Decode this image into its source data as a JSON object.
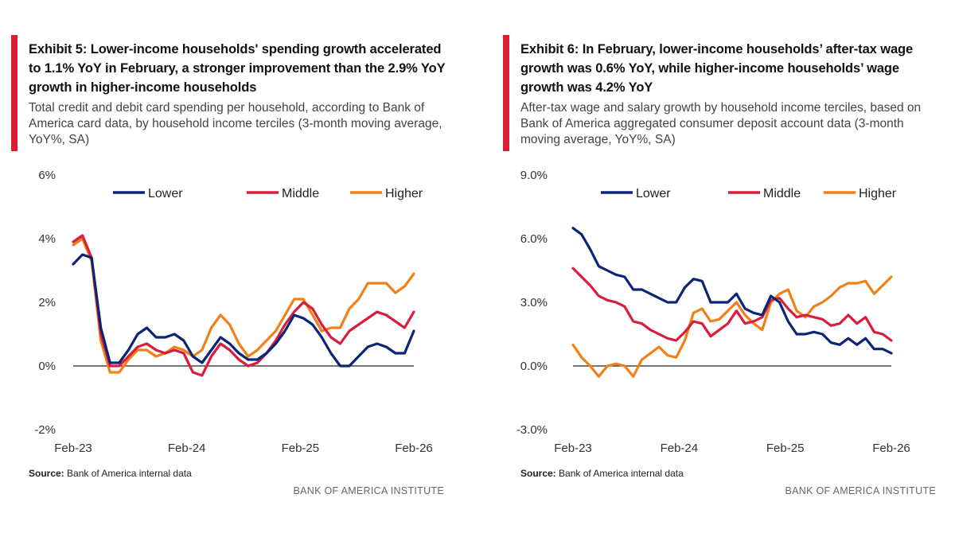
{
  "colors": {
    "lower": "#0b2478",
    "middle": "#d81e3c",
    "higher": "#f08018",
    "accent": "#dc1e35"
  },
  "panels": [
    {
      "title": "Exhibit 5: Lower-income households' spending growth accelerated to 1.1% YoY in February, a stronger improvement than the 2.9% YoY growth in higher-income households",
      "subtitle": "Total credit and debit card spending per household, according to Bank of America card data, by household income terciles (3-month moving average, YoY%, SA)",
      "source_label": "Source:",
      "source_text": "Bank of America internal data",
      "brand": "BANK OF AMERICA INSTITUTE"
    },
    {
      "title": "Exhibit 6: In February, lower-income households’ after-tax wage growth was 0.6% YoY, while higher-income households’ wage growth was 4.2% YoY",
      "subtitle": "After-tax wage and salary growth by household income terciles, based on Bank of America aggregated consumer deposit account data (3-month moving average, YoY%, SA)",
      "source_label": "Source:",
      "source_text": "Bank of America internal data",
      "brand": "BANK OF AMERICA INSTITUTE"
    }
  ],
  "chart_data": [
    {
      "type": "line",
      "title": "Total credit and debit card spending per household (3-month moving average, YoY%, SA)",
      "x_tick_labels": [
        "Feb-23",
        "Feb-24",
        "Feb-25",
        "Feb-26"
      ],
      "y_tick_labels": [
        "6%",
        "4%",
        "2%",
        "0%",
        "-2%"
      ],
      "ylim": [
        -2,
        6
      ],
      "y_ticks": [
        6,
        4,
        2,
        0,
        -2
      ],
      "x_start": "Feb-23",
      "x_end": "Feb-26",
      "legend": [
        "Lower",
        "Middle",
        "Higher"
      ],
      "series": [
        {
          "name": "Lower",
          "key": "lower",
          "values": [
            3.2,
            3.5,
            3.4,
            1.2,
            0.1,
            0.1,
            0.5,
            1.0,
            1.2,
            0.9,
            0.9,
            1.0,
            0.8,
            0.3,
            0.1,
            0.5,
            0.9,
            0.7,
            0.4,
            0.2,
            0.2,
            0.4,
            0.7,
            1.1,
            1.6,
            1.5,
            1.3,
            0.9,
            0.4,
            0.0,
            0.0,
            0.3,
            0.6,
            0.7,
            0.6,
            0.4,
            0.4,
            1.1
          ]
        },
        {
          "name": "Middle",
          "key": "middle",
          "values": [
            3.9,
            4.1,
            3.4,
            1.0,
            0.0,
            0.0,
            0.3,
            0.6,
            0.7,
            0.5,
            0.4,
            0.5,
            0.4,
            -0.2,
            -0.3,
            0.3,
            0.7,
            0.5,
            0.2,
            0.0,
            0.1,
            0.4,
            0.8,
            1.3,
            1.7,
            2.0,
            1.8,
            1.3,
            0.9,
            0.7,
            1.1,
            1.3,
            1.5,
            1.7,
            1.6,
            1.4,
            1.2,
            1.7
          ]
        },
        {
          "name": "Higher",
          "key": "higher",
          "values": [
            3.8,
            4.0,
            3.3,
            0.8,
            -0.2,
            -0.2,
            0.2,
            0.5,
            0.5,
            0.3,
            0.4,
            0.6,
            0.5,
            0.3,
            0.5,
            1.2,
            1.6,
            1.3,
            0.7,
            0.3,
            0.5,
            0.8,
            1.1,
            1.6,
            2.1,
            2.1,
            1.6,
            1.1,
            1.2,
            1.2,
            1.8,
            2.1,
            2.6,
            2.6,
            2.6,
            2.3,
            2.5,
            2.9
          ]
        }
      ]
    },
    {
      "type": "line",
      "title": "After-tax wage and salary growth by household income terciles (3-month moving average, YoY%, SA)",
      "x_tick_labels": [
        "Feb-23",
        "Feb-24",
        "Feb-25",
        "Feb-26"
      ],
      "y_tick_labels": [
        "9.0%",
        "6.0%",
        "3.0%",
        "0.0%",
        "-3.0%"
      ],
      "ylim": [
        -3,
        9
      ],
      "y_ticks": [
        9,
        6,
        3,
        0,
        -3
      ],
      "x_start": "Feb-23",
      "x_end": "Feb-26",
      "legend": [
        "Lower",
        "Middle",
        "Higher"
      ],
      "series": [
        {
          "name": "Lower",
          "key": "lower",
          "values": [
            6.5,
            6.2,
            5.5,
            4.7,
            4.5,
            4.3,
            4.2,
            3.6,
            3.6,
            3.4,
            3.2,
            3.0,
            3.0,
            3.7,
            4.1,
            4.0,
            3.0,
            3.0,
            3.0,
            3.4,
            2.7,
            2.5,
            2.4,
            3.3,
            3.0,
            2.1,
            1.5,
            1.5,
            1.6,
            1.5,
            1.1,
            1.0,
            1.3,
            1.0,
            1.3,
            0.8,
            0.8,
            0.6
          ]
        },
        {
          "name": "Middle",
          "key": "middle",
          "values": [
            4.6,
            4.2,
            3.8,
            3.3,
            3.1,
            3.0,
            2.8,
            2.1,
            2.0,
            1.7,
            1.5,
            1.3,
            1.2,
            1.6,
            2.1,
            2.0,
            1.4,
            1.7,
            2.0,
            2.6,
            2.0,
            2.1,
            2.3,
            3.1,
            3.2,
            2.7,
            2.3,
            2.4,
            2.3,
            2.2,
            1.9,
            2.0,
            2.4,
            2.0,
            2.3,
            1.6,
            1.5,
            1.2
          ]
        },
        {
          "name": "Higher",
          "key": "higher",
          "values": [
            1.0,
            0.4,
            0.0,
            -0.5,
            0.0,
            0.1,
            0.0,
            -0.5,
            0.3,
            0.6,
            0.9,
            0.5,
            0.4,
            1.2,
            2.5,
            2.7,
            2.1,
            2.2,
            2.6,
            3.0,
            2.4,
            2.0,
            1.7,
            3.0,
            3.4,
            3.6,
            2.6,
            2.3,
            2.8,
            3.0,
            3.3,
            3.7,
            3.9,
            3.9,
            4.0,
            3.4,
            3.8,
            4.2
          ]
        }
      ]
    }
  ]
}
